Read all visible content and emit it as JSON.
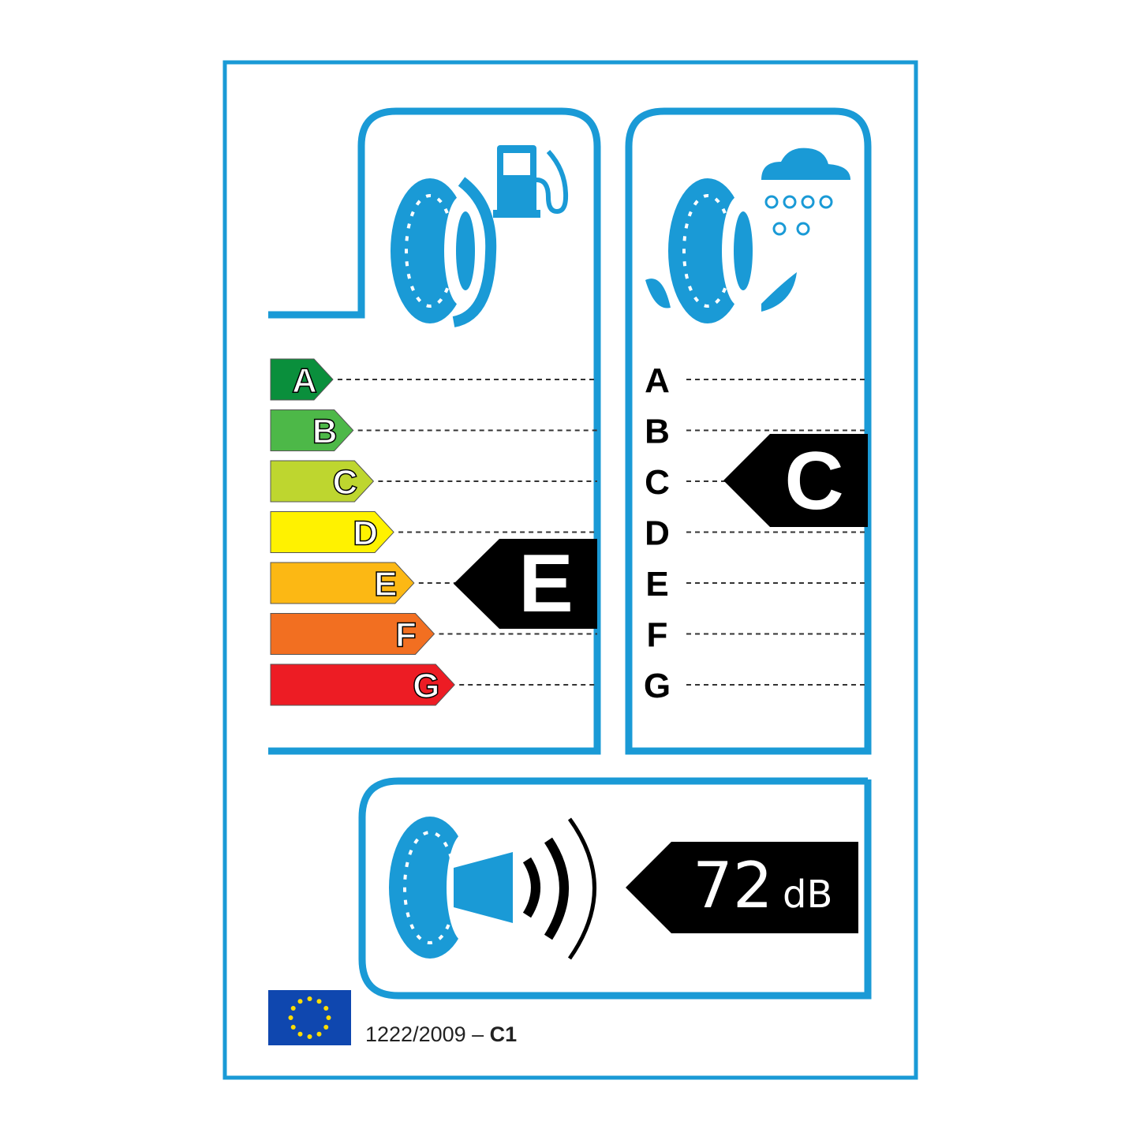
{
  "colors": {
    "frame": "#1a9ad6",
    "A": "#0a8f3c",
    "B": "#4db848",
    "C": "#bed62f",
    "D": "#fff200",
    "E": "#fcb814",
    "F": "#f26f21",
    "G": "#ed1c24",
    "indicator": "#000000",
    "eu_blue": "#0f47af",
    "eu_star": "#ffdd00"
  },
  "fuel_efficiency": {
    "icon": "fuel-pump-tire-icon",
    "classes": [
      "A",
      "B",
      "C",
      "D",
      "E",
      "F",
      "G"
    ],
    "rating": "E"
  },
  "wet_grip": {
    "icon": "rain-cloud-tire-icon",
    "classes": [
      "A",
      "B",
      "C",
      "D",
      "E",
      "F",
      "G"
    ],
    "rating": "C"
  },
  "noise": {
    "icon": "tire-sound-waves-icon",
    "value": "72",
    "unit": "dB",
    "sound_waves": 3
  },
  "footer": {
    "regulation": "1222/2009 –",
    "tyre_class": "C1"
  }
}
